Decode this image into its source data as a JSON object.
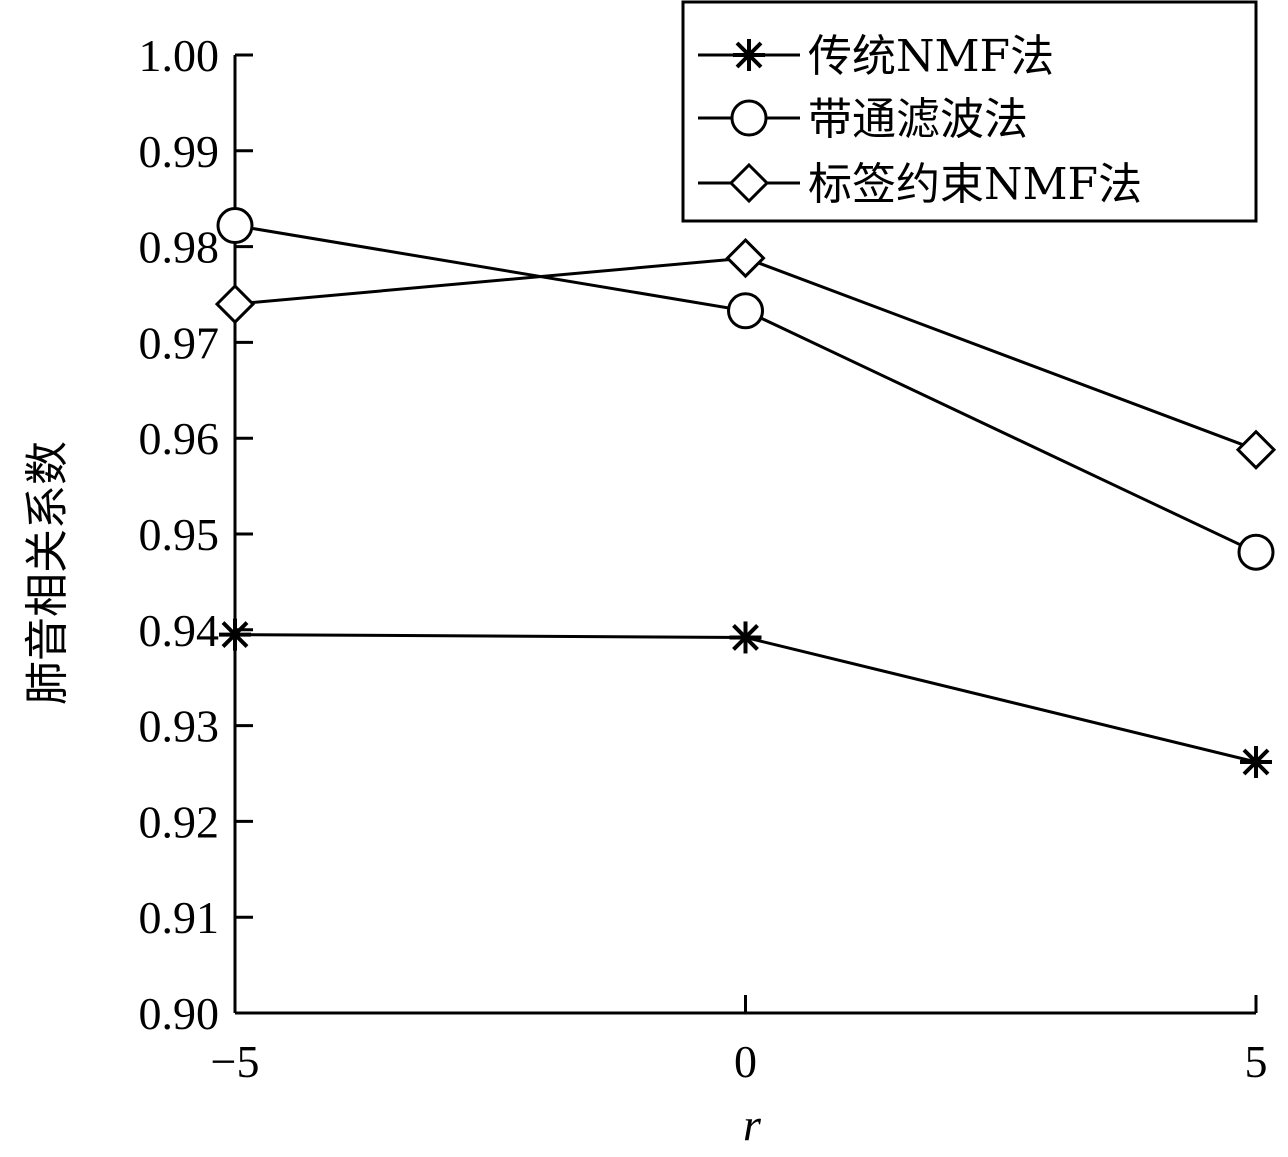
{
  "chart_data": {
    "type": "line",
    "title": "",
    "xlabel": "r",
    "ylabel": "肺音相关系数",
    "x": [
      -5,
      0,
      5
    ],
    "x_ticks": [
      -5,
      0,
      5
    ],
    "x_tick_labels": [
      "−5",
      "0",
      "5"
    ],
    "xlim": [
      -5,
      5
    ],
    "ylim": [
      0.9,
      1.0
    ],
    "y_ticks": [
      0.9,
      0.91,
      0.92,
      0.93,
      0.94,
      0.95,
      0.96,
      0.97,
      0.98,
      0.99,
      1.0
    ],
    "y_tick_labels": [
      "0.90",
      "0.91",
      "0.92",
      "0.93",
      "0.94",
      "0.95",
      "0.96",
      "0.97",
      "0.98",
      "0.99",
      "1.00"
    ],
    "grid": false,
    "legend_position": "top-right",
    "series": [
      {
        "name": "传统NMF法",
        "marker": "asterisk",
        "values": [
          0.9395,
          0.9392,
          0.9262
        ]
      },
      {
        "name": "带通滤波法",
        "marker": "circle",
        "values": [
          0.9822,
          0.9733,
          0.9481
        ]
      },
      {
        "name": "标签约束NMF法",
        "marker": "diamond",
        "values": [
          0.974,
          0.9788,
          0.9588
        ]
      }
    ],
    "colors": {
      "line": "#000000",
      "background": "#ffffff"
    }
  }
}
